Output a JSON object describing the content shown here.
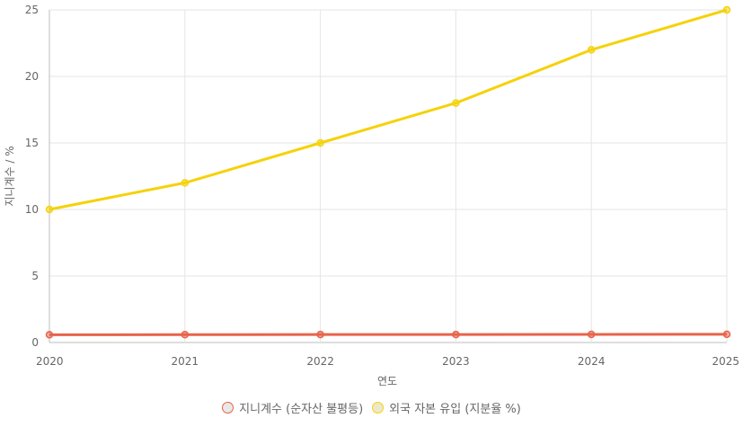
{
  "chart_data": {
    "type": "line",
    "x": [
      "2020",
      "2021",
      "2022",
      "2023",
      "2024",
      "2025"
    ],
    "xlabel": "연도",
    "ylabel": "지니계수 / %",
    "ylim": [
      0,
      25
    ],
    "yticks": [
      0,
      5,
      10,
      15,
      20,
      25
    ],
    "grid": true,
    "legend_position": "bottom",
    "series": [
      {
        "name": "지니계수 (순자산 불평등)",
        "values": [
          0.58,
          0.59,
          0.6,
          0.6,
          0.61,
          0.62
        ],
        "color": "#e8634a",
        "fill": "#e8e8e8"
      },
      {
        "name": "외국 자본 유입 (지분율 %)",
        "values": [
          10,
          12,
          15,
          18,
          22,
          25
        ],
        "color": "#f5d20a",
        "fill": "#ece8cc"
      }
    ]
  }
}
